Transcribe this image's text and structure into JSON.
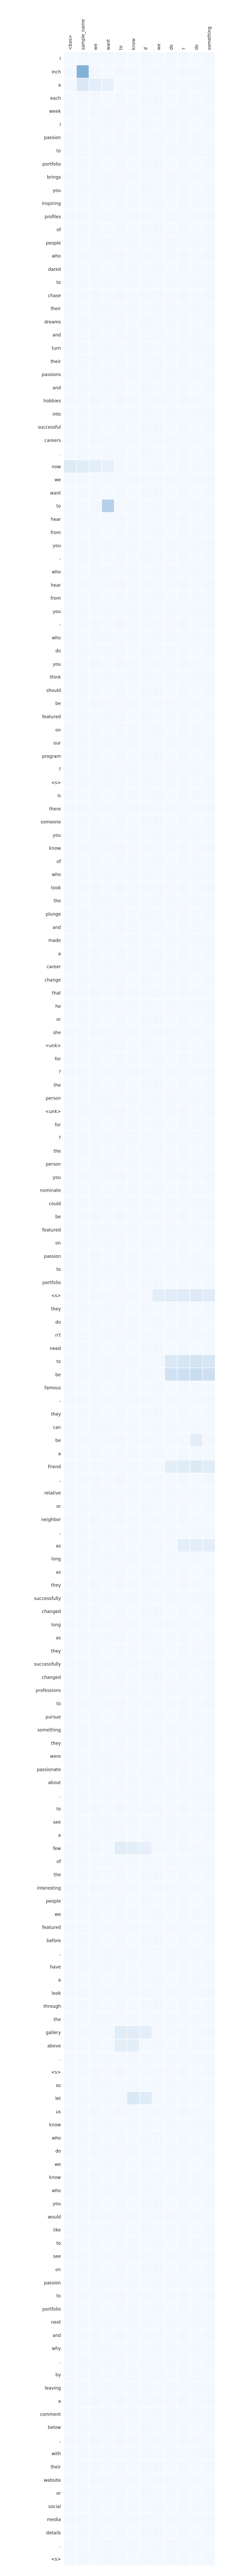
{
  "chart_data": {
    "type": "heatmap",
    "title": "",
    "xlabel": "",
    "ylabel": "",
    "x_tokens": [
      "<bos>",
      "sample_name",
      "we",
      "want",
      "to",
      "know",
      "if",
      "we",
      "do",
      "?",
      "do",
      "something"
    ],
    "y_tokens": [
      "I",
      "inch",
      "a",
      "each",
      "week",
      "I",
      "passion",
      "to",
      "portfolio",
      "brings",
      "you",
      "inspiring",
      "profiles",
      "of",
      "people",
      "who",
      "dared",
      "to",
      "chase",
      "their",
      "dreams",
      "and",
      "turn",
      "their",
      "passions",
      "and",
      "hobbies",
      "into",
      "successful",
      "careers",
      ".",
      "now",
      "we",
      "want",
      "to",
      "hear",
      "from",
      "you",
      "-",
      "who",
      "hear",
      "from",
      "you",
      "-",
      "who",
      "do",
      "you",
      "think",
      "should",
      "be",
      "featured",
      "on",
      "our",
      "program",
      "?",
      "<s>",
      "is",
      "there",
      "someone",
      "you",
      "know",
      "of",
      "who",
      "took",
      "the",
      "plunge",
      "and",
      "made",
      "a",
      "career",
      "change",
      "that",
      "he",
      "or",
      "she",
      "<unk>",
      "for",
      "?",
      "the",
      "person",
      "<unk>",
      "for",
      "?",
      "the",
      "person",
      "you",
      "nominate",
      "could",
      "be",
      "featured",
      "on",
      "passion",
      "to",
      "portfolio",
      "<s>",
      "they",
      "do",
      "n't",
      "need",
      "to",
      "be",
      "famous",
      "-",
      "they",
      "can",
      "be",
      "a",
      "friend",
      ",",
      "relative",
      "or",
      "neighbor",
      ",",
      "as",
      "long",
      "as",
      "they",
      "successfully",
      "changed",
      "long",
      "as",
      "they",
      "successfully",
      "changed",
      "professions",
      "to",
      "pursue",
      "something",
      "they",
      "were",
      "passionate",
      "about",
      ".",
      "to",
      "see",
      "a",
      "few",
      "of",
      "the",
      "interesting",
      "people",
      "we",
      "featured",
      "before",
      ",",
      "have",
      "a",
      "look",
      "through",
      "the",
      "gallery",
      "above",
      ".",
      "<s>",
      "so",
      "let",
      "us",
      "know",
      "who",
      "do",
      "we",
      "know",
      "who",
      "you",
      "would",
      "like",
      "to",
      "see",
      "on",
      "passion",
      "to",
      "portfolio",
      "next",
      "and",
      "why",
      ".",
      "by",
      "leaving",
      "a",
      "comment",
      "below",
      ",",
      "with",
      "their",
      "website",
      "or",
      "social",
      "media",
      "details",
      ".",
      "<s>"
    ],
    "colormap": "Blues",
    "value_range": [
      0,
      1
    ],
    "hotspots": [
      {
        "row": 1,
        "col": 1,
        "value": 0.62
      },
      {
        "row": 2,
        "col": 1,
        "value": 0.18
      },
      {
        "row": 2,
        "col": 2,
        "value": 0.12
      },
      {
        "row": 2,
        "col": 3,
        "value": 0.1
      },
      {
        "row": 31,
        "col": 0,
        "value": 0.16
      },
      {
        "row": 31,
        "col": 1,
        "value": 0.14
      },
      {
        "row": 31,
        "col": 2,
        "value": 0.12
      },
      {
        "row": 31,
        "col": 3,
        "value": 0.1
      },
      {
        "row": 34,
        "col": 3,
        "value": 0.38
      },
      {
        "row": 94,
        "col": 7,
        "value": 0.12
      },
      {
        "row": 94,
        "col": 8,
        "value": 0.14
      },
      {
        "row": 94,
        "col": 9,
        "value": 0.14
      },
      {
        "row": 94,
        "col": 10,
        "value": 0.16
      },
      {
        "row": 94,
        "col": 11,
        "value": 0.14
      },
      {
        "row": 99,
        "col": 8,
        "value": 0.18
      },
      {
        "row": 99,
        "col": 9,
        "value": 0.2
      },
      {
        "row": 99,
        "col": 10,
        "value": 0.22
      },
      {
        "row": 99,
        "col": 11,
        "value": 0.2
      },
      {
        "row": 100,
        "col": 8,
        "value": 0.24
      },
      {
        "row": 100,
        "col": 9,
        "value": 0.26
      },
      {
        "row": 100,
        "col": 10,
        "value": 0.28
      },
      {
        "row": 100,
        "col": 11,
        "value": 0.26
      },
      {
        "row": 105,
        "col": 10,
        "value": 0.12
      },
      {
        "row": 107,
        "col": 8,
        "value": 0.12
      },
      {
        "row": 107,
        "col": 9,
        "value": 0.14
      },
      {
        "row": 107,
        "col": 10,
        "value": 0.16
      },
      {
        "row": 107,
        "col": 11,
        "value": 0.14
      },
      {
        "row": 113,
        "col": 9,
        "value": 0.12
      },
      {
        "row": 113,
        "col": 10,
        "value": 0.12
      },
      {
        "row": 113,
        "col": 11,
        "value": 0.12
      },
      {
        "row": 136,
        "col": 4,
        "value": 0.14
      },
      {
        "row": 136,
        "col": 5,
        "value": 0.12
      },
      {
        "row": 136,
        "col": 6,
        "value": 0.1
      },
      {
        "row": 150,
        "col": 4,
        "value": 0.14
      },
      {
        "row": 150,
        "col": 5,
        "value": 0.14
      },
      {
        "row": 150,
        "col": 6,
        "value": 0.12
      },
      {
        "row": 151,
        "col": 4,
        "value": 0.12
      },
      {
        "row": 151,
        "col": 5,
        "value": 0.12
      },
      {
        "row": 155,
        "col": 5,
        "value": 0.18
      },
      {
        "row": 155,
        "col": 6,
        "value": 0.14
      }
    ]
  }
}
